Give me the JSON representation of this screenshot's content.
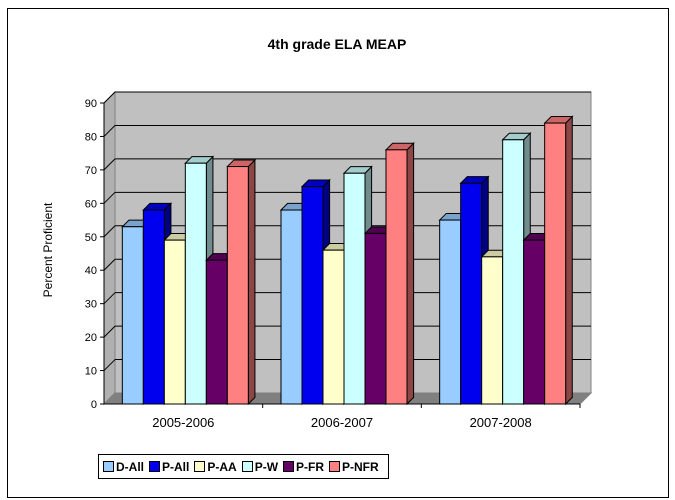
{
  "chart_data": {
    "type": "bar",
    "title": "4th grade ELA MEAP",
    "xlabel": "",
    "ylabel": "Percent Proficient",
    "ylim": [
      0,
      90
    ],
    "yticks": [
      0,
      10,
      20,
      30,
      40,
      50,
      60,
      70,
      80,
      90
    ],
    "categories": [
      "2005-2006",
      "2006-2007",
      "2007-2008"
    ],
    "series": [
      {
        "name": "D-All",
        "color": "#99ccff",
        "values": [
          53,
          58,
          55
        ]
      },
      {
        "name": "P-All",
        "color": "#0000ee",
        "values": [
          58,
          65,
          66
        ]
      },
      {
        "name": "P-AA",
        "color": "#ffffcc",
        "values": [
          49,
          46,
          44
        ]
      },
      {
        "name": "P-W",
        "color": "#ccffff",
        "values": [
          72,
          69,
          79
        ]
      },
      {
        "name": "P-FR",
        "color": "#660066",
        "values": [
          43,
          51,
          49
        ]
      },
      {
        "name": "P-NFR",
        "color": "#ff8080",
        "values": [
          71,
          76,
          84
        ]
      }
    ],
    "grid": true,
    "legend_position": "bottom"
  }
}
